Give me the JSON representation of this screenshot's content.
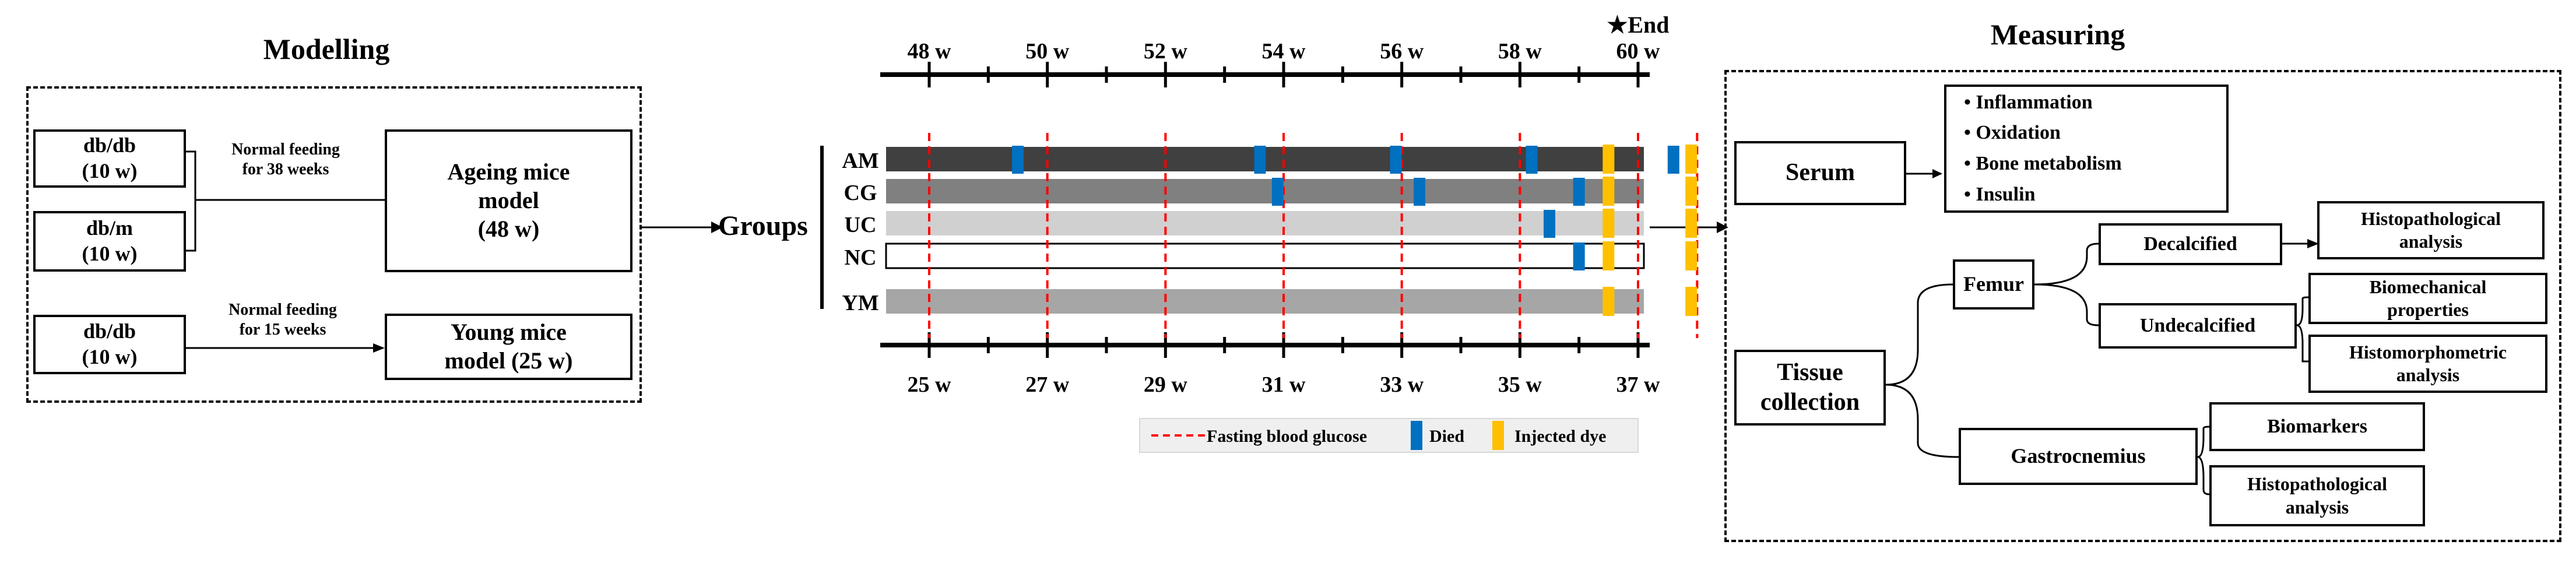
{
  "modelling": {
    "title": "Modelling",
    "dbdb_top": [
      "db/db",
      "(10 w)"
    ],
    "dbm": [
      "db/m",
      "(10 w)"
    ],
    "dbdb_bottom": [
      "db/db",
      "(10 w)"
    ],
    "feed_38": [
      "Normal feeding",
      "for 38 weeks"
    ],
    "feed_15": [
      "Normal feeding",
      "for 15 weeks"
    ],
    "ageing_model": [
      "Ageing mice",
      "model",
      "(48 w)"
    ],
    "young_model": [
      "Young mice",
      "model (25 w)"
    ]
  },
  "groups_label": "Groups",
  "timeline": {
    "end_label": "★End",
    "top_weeks": [
      "48 w",
      "50 w",
      "52 w",
      "54 w",
      "56 w",
      "58 w",
      "60 w"
    ],
    "bottom_weeks": [
      "25 w",
      "27 w",
      "29 w",
      "31 w",
      "33 w",
      "35 w",
      "37 w"
    ],
    "groups": [
      {
        "name": "AM",
        "color": "#404040",
        "died": [
          1.5,
          5.6,
          7.9,
          10.2,
          12.6
        ],
        "dye": [
          11.5,
          12.9
        ]
      },
      {
        "name": "CG",
        "color": "#808080",
        "died": [
          5.9,
          8.3,
          11.0
        ],
        "dye": [
          11.5,
          12.9
        ]
      },
      {
        "name": "UC",
        "color": "#d0d0d0",
        "died": [
          10.5
        ],
        "dye": [
          11.5,
          12.9
        ]
      },
      {
        "name": "NC",
        "color": "#ffffff",
        "died": [
          11.0
        ],
        "dye": [
          11.5,
          12.9
        ]
      },
      {
        "name": "YM",
        "color": "#a6a6a6",
        "died": [],
        "dye": [
          11.5,
          12.9
        ]
      }
    ],
    "fasting_weeks_offset": [
      0,
      2,
      4,
      6,
      8,
      10,
      12,
      13
    ],
    "legend": {
      "fasting": "Fasting blood glucose",
      "died": "Died",
      "injected": "Injected dye",
      "died_color": "#0070c0",
      "dye_color": "#ffc000",
      "fasting_color": "#ff0000"
    }
  },
  "measuring": {
    "title": "Measuring",
    "serum": "Serum",
    "serum_items": [
      "• Inflammation",
      "• Oxidation",
      "• Bone metabolism",
      "• Insulin"
    ],
    "tissue": [
      "Tissue",
      "collection"
    ],
    "femur": "Femur",
    "decalcified": "Decalcified",
    "histo_analysis_1": [
      "Histopathological",
      "analysis"
    ],
    "undecalcified": "Undecalcified",
    "biomech": [
      "Biomechanical",
      "properties"
    ],
    "histomorph": [
      "Histomorphometric",
      "analysis"
    ],
    "gastro": "Gastrocnemius",
    "biomarkers": "Biomarkers",
    "histo_analysis_2": [
      "Histopathological",
      "analysis"
    ]
  }
}
